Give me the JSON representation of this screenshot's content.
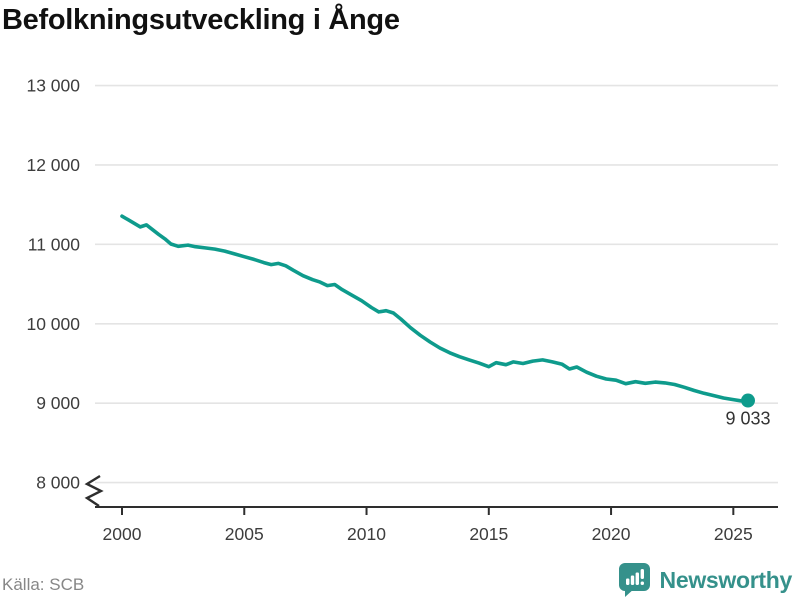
{
  "header": {
    "title": "Befolkningsutveckling i Ånge"
  },
  "footer": {
    "source": "Källa: SCB",
    "brand": "Newsworthy"
  },
  "colors": {
    "line": "#0e9b8c",
    "grid": "#e4e4e4",
    "axis": "#2e2e2e",
    "tick_label": "#3d3d3d",
    "annotation": "#333333",
    "source": "#878787",
    "brand": "#35918b",
    "title": "#111111"
  },
  "chart_data": {
    "type": "line",
    "title": "Befolkningsutveckling i Ånge",
    "xlabel": "",
    "ylabel": "",
    "source": "Källa: SCB",
    "grid": "horizontal",
    "y_axis_break": true,
    "ylim": [
      8000,
      13000
    ],
    "xlim": [
      1998.9,
      2026.8
    ],
    "xticks": [
      2000,
      2005,
      2010,
      2015,
      2020,
      2025
    ],
    "xtick_labels": [
      "2000",
      "2005",
      "2010",
      "2015",
      "2020",
      "2025"
    ],
    "yticks": [
      8000,
      9000,
      10000,
      11000,
      12000,
      13000
    ],
    "ytick_labels": [
      "8 000",
      "9 000",
      "10 000",
      "11 000",
      "12 000",
      "13 000"
    ],
    "series_name": "Befolkning i Ånge",
    "latest_value": 9033,
    "last_point_label": "9 033",
    "points": [
      [
        2000.0,
        11355
      ],
      [
        2000.25,
        11310
      ],
      [
        2000.5,
        11265
      ],
      [
        2000.75,
        11220
      ],
      [
        2001.0,
        11245
      ],
      [
        2001.25,
        11185
      ],
      [
        2001.5,
        11125
      ],
      [
        2001.75,
        11070
      ],
      [
        2002.0,
        11005
      ],
      [
        2002.3,
        10975
      ],
      [
        2002.7,
        10990
      ],
      [
        2003.0,
        10970
      ],
      [
        2003.4,
        10955
      ],
      [
        2003.8,
        10940
      ],
      [
        2004.2,
        10915
      ],
      [
        2004.6,
        10880
      ],
      [
        2005.0,
        10845
      ],
      [
        2005.4,
        10810
      ],
      [
        2005.8,
        10770
      ],
      [
        2006.1,
        10745
      ],
      [
        2006.4,
        10760
      ],
      [
        2006.7,
        10730
      ],
      [
        2007.0,
        10675
      ],
      [
        2007.4,
        10605
      ],
      [
        2007.8,
        10555
      ],
      [
        2008.1,
        10525
      ],
      [
        2008.4,
        10480
      ],
      [
        2008.7,
        10495
      ],
      [
        2009.0,
        10430
      ],
      [
        2009.4,
        10360
      ],
      [
        2009.8,
        10290
      ],
      [
        2010.2,
        10205
      ],
      [
        2010.5,
        10150
      ],
      [
        2010.8,
        10165
      ],
      [
        2011.1,
        10135
      ],
      [
        2011.4,
        10060
      ],
      [
        2011.8,
        9950
      ],
      [
        2012.2,
        9855
      ],
      [
        2012.6,
        9770
      ],
      [
        2013.0,
        9695
      ],
      [
        2013.4,
        9635
      ],
      [
        2013.8,
        9585
      ],
      [
        2014.2,
        9545
      ],
      [
        2014.6,
        9505
      ],
      [
        2015.0,
        9460
      ],
      [
        2015.3,
        9510
      ],
      [
        2015.7,
        9485
      ],
      [
        2016.0,
        9520
      ],
      [
        2016.4,
        9500
      ],
      [
        2016.8,
        9530
      ],
      [
        2017.2,
        9545
      ],
      [
        2017.6,
        9520
      ],
      [
        2018.0,
        9490
      ],
      [
        2018.3,
        9430
      ],
      [
        2018.6,
        9455
      ],
      [
        2019.0,
        9390
      ],
      [
        2019.4,
        9340
      ],
      [
        2019.8,
        9305
      ],
      [
        2020.2,
        9290
      ],
      [
        2020.6,
        9245
      ],
      [
        2021.0,
        9270
      ],
      [
        2021.4,
        9250
      ],
      [
        2021.8,
        9265
      ],
      [
        2022.2,
        9255
      ],
      [
        2022.6,
        9235
      ],
      [
        2023.0,
        9200
      ],
      [
        2023.4,
        9160
      ],
      [
        2023.8,
        9125
      ],
      [
        2024.2,
        9095
      ],
      [
        2024.6,
        9065
      ],
      [
        2025.0,
        9045
      ],
      [
        2025.3,
        9030
      ],
      [
        2025.6,
        9033
      ]
    ]
  }
}
